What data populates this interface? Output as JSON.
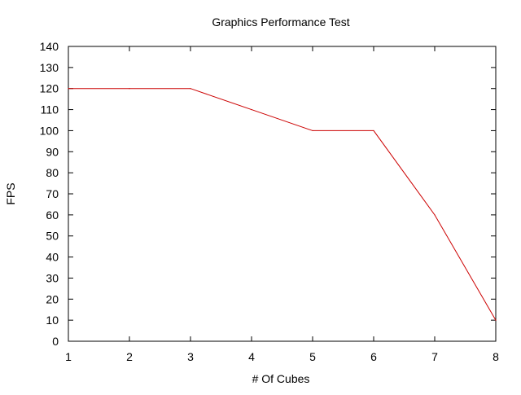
{
  "chart_data": {
    "type": "line",
    "title": "Graphics Performance Test",
    "xlabel": "# Of Cubes",
    "ylabel": "FPS",
    "xlim": [
      1,
      8
    ],
    "ylim": [
      0,
      140
    ],
    "x_ticks": [
      1,
      2,
      3,
      4,
      5,
      6,
      7,
      8
    ],
    "y_ticks": [
      0,
      10,
      20,
      30,
      40,
      50,
      60,
      70,
      80,
      90,
      100,
      110,
      120,
      130,
      140
    ],
    "grid": false,
    "legend": "none",
    "series": [
      {
        "color": "#cc0000",
        "x": [
          1,
          2,
          3,
          4,
          5,
          6,
          7,
          8
        ],
        "y": [
          120,
          120,
          120,
          110,
          100,
          100,
          60,
          10
        ]
      }
    ]
  }
}
